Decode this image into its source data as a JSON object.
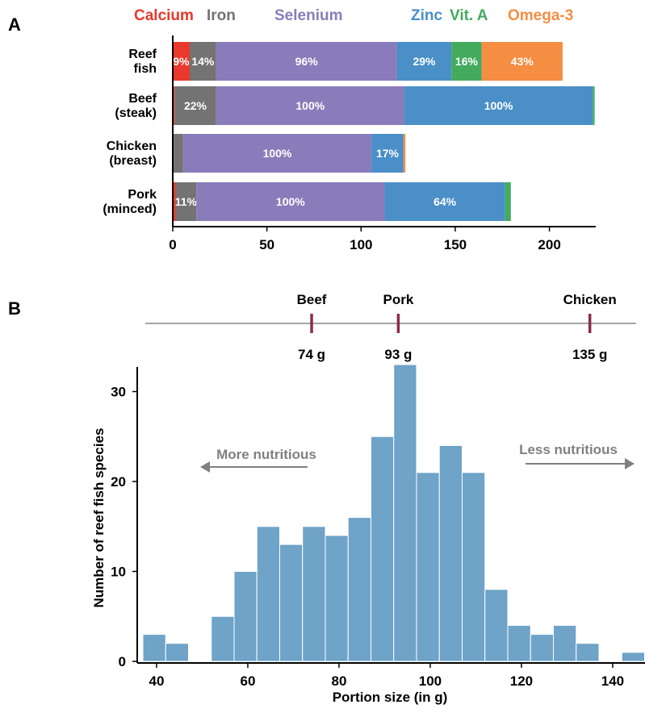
{
  "panel_a_letter": "A",
  "panel_b_letter": "B",
  "legend": [
    {
      "label": "Calcium",
      "color": "#e8392c"
    },
    {
      "label": "Iron",
      "color": "#737373"
    },
    {
      "label": "Selenium",
      "color": "#8a7cba"
    },
    {
      "label": "Zinc",
      "color": "#4a8fc7"
    },
    {
      "label": "Vit. A",
      "color": "#43ab5e"
    },
    {
      "label": "Omega-3",
      "color": "#f58d42"
    }
  ],
  "chart_data": [
    {
      "type": "bar",
      "orientation": "horizontal",
      "stacked": true,
      "categories": [
        [
          "Reef",
          "fish"
        ],
        [
          "Beef",
          "(steak)"
        ],
        [
          "Chicken",
          "(breast)"
        ],
        [
          "Pork",
          "(minced)"
        ]
      ],
      "series": [
        {
          "name": "Calcium",
          "values": [
            9,
            1,
            0,
            1.5
          ]
        },
        {
          "name": "Iron",
          "values": [
            14,
            22,
            5.5,
            11
          ]
        },
        {
          "name": "Selenium",
          "values": [
            96,
            100,
            100,
            100
          ]
        },
        {
          "name": "Zinc",
          "values": [
            29,
            100,
            17,
            64
          ]
        },
        {
          "name": "Vit. A",
          "values": [
            16,
            1,
            0,
            3
          ]
        },
        {
          "name": "Omega-3",
          "values": [
            43,
            0,
            1,
            0
          ]
        }
      ],
      "segment_labels": [
        [
          "9%",
          "14%",
          "96%",
          "29%",
          "16%",
          "43%"
        ],
        [
          "",
          "22%",
          "100%",
          "100%",
          "",
          ""
        ],
        [
          "",
          "",
          "100%",
          "17%",
          "",
          ""
        ],
        [
          "",
          "11%",
          "100%",
          "64%",
          "",
          ""
        ]
      ],
      "xlim": [
        0,
        225
      ],
      "xticks": [
        0,
        50,
        100,
        150,
        200
      ]
    },
    {
      "type": "bar",
      "subtype": "histogram",
      "bin_width": 5,
      "bin_starts": [
        37,
        42,
        47,
        52,
        57,
        62,
        67,
        72,
        77,
        82,
        87,
        92,
        97,
        102,
        107,
        112,
        117,
        122,
        127,
        132,
        137,
        142
      ],
      "values": [
        3,
        2,
        0,
        5,
        10,
        15,
        13,
        15,
        14,
        16,
        25,
        33,
        21,
        24,
        21,
        8,
        4,
        3,
        4,
        2,
        0,
        1
      ],
      "xlabel": "Portion size (in g)",
      "ylabel": "Number of reef fish species",
      "xlim": [
        37,
        147
      ],
      "ylim": [
        0,
        33
      ],
      "xticks": [
        40,
        60,
        80,
        100,
        120,
        140
      ],
      "yticks": [
        0,
        10,
        20,
        30
      ],
      "color": "#6fa3c8",
      "reference_portions": [
        {
          "label": "Beef",
          "value_label": "74 g",
          "value": 74
        },
        {
          "label": "Pork",
          "value_label": "93 g",
          "value": 93
        },
        {
          "label": "Chicken",
          "value_label": "135 g",
          "value": 135
        }
      ],
      "annotations": {
        "left": "More nutritious",
        "right": "Less nutritious"
      }
    }
  ]
}
